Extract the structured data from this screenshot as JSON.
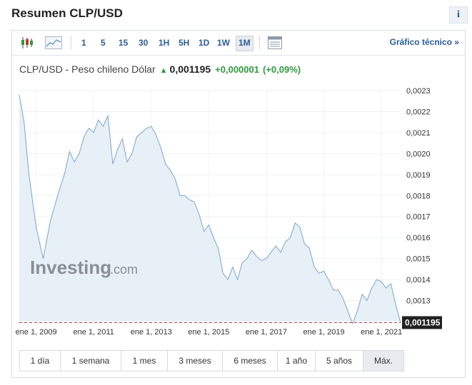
{
  "header": {
    "title": "Resumen CLP/USD",
    "info_label": "i"
  },
  "toolbar": {
    "intervals": [
      "1",
      "5",
      "15",
      "30",
      "1H",
      "5H",
      "1D",
      "1W",
      "1M"
    ],
    "active_interval": "1M",
    "technical_link": "Gráfico técnico »"
  },
  "quote": {
    "name": "CLP/USD - Peso chileno Dólar",
    "price": "0,001195",
    "change": "+0,000001",
    "change_pct": "(+0,09%)"
  },
  "watermark": {
    "brand": "Investing",
    "suffix": ".com"
  },
  "chart_data": {
    "type": "area",
    "x": [
      "2008-06",
      "2008-08",
      "2008-10",
      "2009-01",
      "2009-04",
      "2009-07",
      "2009-10",
      "2010-01",
      "2010-03",
      "2010-05",
      "2010-07",
      "2010-09",
      "2010-11",
      "2011-01",
      "2011-03",
      "2011-05",
      "2011-07",
      "2011-09",
      "2011-11",
      "2012-01",
      "2012-03",
      "2012-05",
      "2012-07",
      "2012-09",
      "2012-11",
      "2013-01",
      "2013-03",
      "2013-05",
      "2013-07",
      "2013-09",
      "2013-11",
      "2014-01",
      "2014-03",
      "2014-05",
      "2014-07",
      "2014-09",
      "2014-11",
      "2015-01",
      "2015-03",
      "2015-05",
      "2015-07",
      "2015-09",
      "2015-11",
      "2016-01",
      "2016-03",
      "2016-05",
      "2016-07",
      "2016-09",
      "2016-11",
      "2017-01",
      "2017-03",
      "2017-05",
      "2017-07",
      "2017-09",
      "2017-11",
      "2018-01",
      "2018-03",
      "2018-05",
      "2018-07",
      "2018-09",
      "2018-11",
      "2019-01",
      "2019-03",
      "2019-05",
      "2019-07",
      "2019-09",
      "2019-11",
      "2020-01",
      "2020-03",
      "2020-05",
      "2020-07",
      "2020-09",
      "2020-11",
      "2021-01",
      "2021-03",
      "2021-05",
      "2021-07",
      "2021-09"
    ],
    "values": [
      0.00228,
      0.00215,
      0.0019,
      0.00165,
      0.0015,
      0.00168,
      0.0018,
      0.00191,
      0.00201,
      0.00196,
      0.002,
      0.00208,
      0.00212,
      0.0021,
      0.00216,
      0.00213,
      0.00218,
      0.00195,
      0.00202,
      0.00207,
      0.00196,
      0.002,
      0.00208,
      0.0021,
      0.00212,
      0.00213,
      0.00209,
      0.00203,
      0.00195,
      0.00192,
      0.00188,
      0.0018,
      0.0018,
      0.00178,
      0.00177,
      0.00171,
      0.00163,
      0.00166,
      0.0016,
      0.00155,
      0.00143,
      0.0014,
      0.00146,
      0.0014,
      0.00148,
      0.0015,
      0.00154,
      0.00151,
      0.00149,
      0.0015,
      0.00153,
      0.00156,
      0.00153,
      0.00158,
      0.0016,
      0.00167,
      0.00165,
      0.00157,
      0.00155,
      0.00146,
      0.00143,
      0.00144,
      0.0014,
      0.00135,
      0.00135,
      0.00131,
      0.00125,
      0.00119,
      0.00125,
      0.00133,
      0.0013,
      0.00136,
      0.0014,
      0.00139,
      0.00136,
      0.00138,
      0.00128,
      0.001195
    ],
    "ylim": [
      0.0012,
      0.0023
    ],
    "y_ticks": [
      "0,0023",
      "0,0022",
      "0,0021",
      "0,0020",
      "0,0019",
      "0,0018",
      "0,0017",
      "0,0016",
      "0,0015",
      "0,0014",
      "0,0013"
    ],
    "x_ticks": [
      "ene 1, 2009",
      "ene 1, 2011",
      "ene 1, 2013",
      "ene 1, 2015",
      "ene 1, 2017",
      "ene 1, 2019",
      "ene 1, 2021"
    ],
    "current_value": 0.001195,
    "current_label": "0,001195",
    "grid": true,
    "line_color": "#7aa6c9",
    "fill_color": "#e7eff7",
    "marker_line_color": "#b03a3a"
  },
  "ranges": {
    "items": [
      "1 día",
      "1 semana",
      "1 mes",
      "3 meses",
      "6 meses",
      "1 año",
      "5 años",
      "Máx."
    ],
    "active": "Máx."
  },
  "colors": {
    "link": "#2a5c99",
    "positive": "#2d9a3c"
  }
}
